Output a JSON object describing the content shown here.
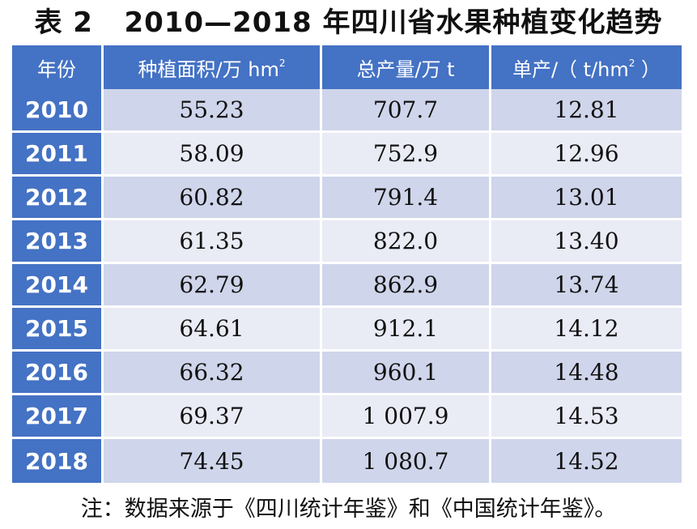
{
  "title": "表 2   2010—2018 年四川省水果种植变化趋势",
  "table": {
    "headers": {
      "year": "年份",
      "area": "种植面积/万 hm",
      "area_sup": "2",
      "output": "总产量/万 t",
      "unit_prefix": "单产/（ t/hm",
      "unit_sup": "2",
      "unit_suffix": " ）"
    },
    "rows": [
      {
        "year": "2010",
        "area": "55.23",
        "output": "707.7",
        "unit_yield": "12.81"
      },
      {
        "year": "2011",
        "area": "58.09",
        "output": "752.9",
        "unit_yield": "12.96"
      },
      {
        "year": "2012",
        "area": "60.82",
        "output": "791.4",
        "unit_yield": "13.01"
      },
      {
        "year": "2013",
        "area": "61.35",
        "output": "822.0",
        "unit_yield": "13.40"
      },
      {
        "year": "2014",
        "area": "62.79",
        "output": "862.9",
        "unit_yield": "13.74"
      },
      {
        "year": "2015",
        "area": "64.61",
        "output": "912.1",
        "unit_yield": "14.12"
      },
      {
        "year": "2016",
        "area": "66.32",
        "output": "960.1",
        "unit_yield": "14.48"
      },
      {
        "year": "2017",
        "area": "69.37",
        "output": "1 007.9",
        "unit_yield": "14.53"
      },
      {
        "year": "2018",
        "area": "74.45",
        "output": "1 080.7",
        "unit_yield": "14.52"
      }
    ]
  },
  "note": "注：数据来源于《四川统计年鉴》和《中国统计年鉴》。",
  "colors": {
    "header_bg": "#4472c4",
    "row_odd_bg": "#cfd5ea",
    "row_even_bg": "#e9ebf5",
    "text": "#111111"
  }
}
